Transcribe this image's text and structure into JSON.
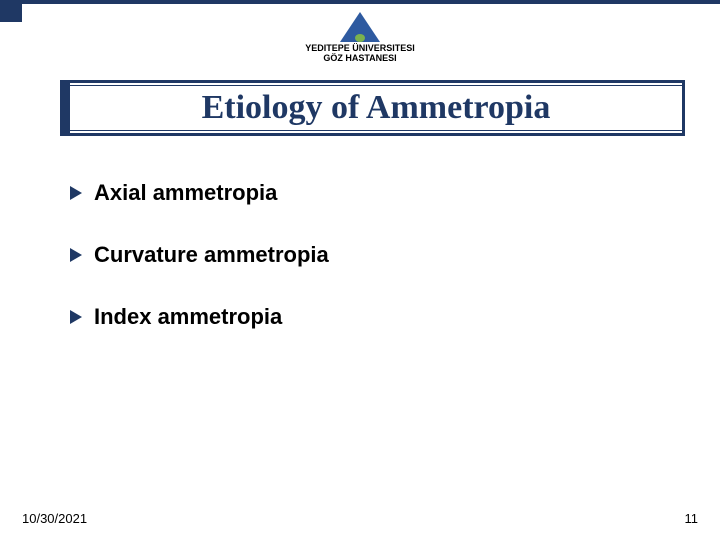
{
  "logo": {
    "line1": "YEDITEPE ÜNIVERSITESI",
    "line2": "GÖZ HASTANESI"
  },
  "title": "Etiology of Ammetropia",
  "bullets": [
    "Axial ammetropia",
    "Curvature ammetropia",
    "Index ammetropia"
  ],
  "footer": {
    "date": "10/30/2021",
    "page": "11"
  },
  "colors": {
    "primary": "#1f3864",
    "text": "#000000",
    "background": "#ffffff"
  }
}
